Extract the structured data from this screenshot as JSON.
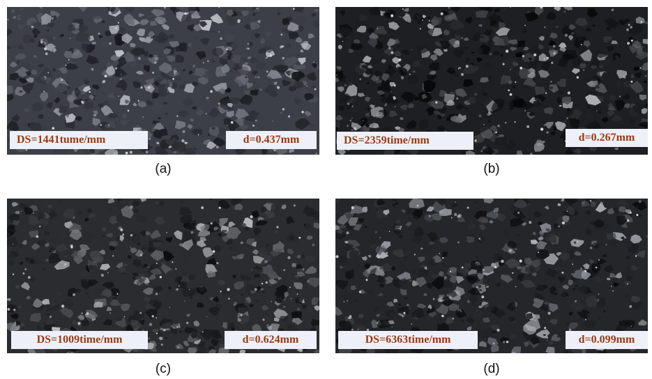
{
  "panels": [
    {
      "id": "a",
      "caption": "(a)",
      "ds_label": "DS=1441tume/mm",
      "d_label": "d=0.437mm",
      "tone": {
        "base": "#3c3f45",
        "light": "#a9adb4",
        "dark": "#15161a"
      }
    },
    {
      "id": "b",
      "caption": "(b)",
      "ds_label": "DS=2359time/mm",
      "d_label": "d=0.267mm",
      "tone": {
        "base": "#1d1f22",
        "light": "#8b8e92",
        "dark": "#050506"
      }
    },
    {
      "id": "c",
      "caption": "(c)",
      "ds_label": "DS=1009time/mm",
      "d_label": "d=0.624mm",
      "tone": {
        "base": "#2b2c2f",
        "light": "#9c9ea3",
        "dark": "#0c0c0e"
      }
    },
    {
      "id": "d",
      "caption": "(d)",
      "ds_label": "DS=6363time/mm",
      "d_label": "d=0.099mm",
      "tone": {
        "base": "#24262a",
        "light": "#8f939a",
        "dark": "#0a0b0d"
      }
    }
  ],
  "colors": {
    "label_background": "#eef0f9",
    "label_text": "#9a3a10",
    "caption_text": "#111111"
  }
}
